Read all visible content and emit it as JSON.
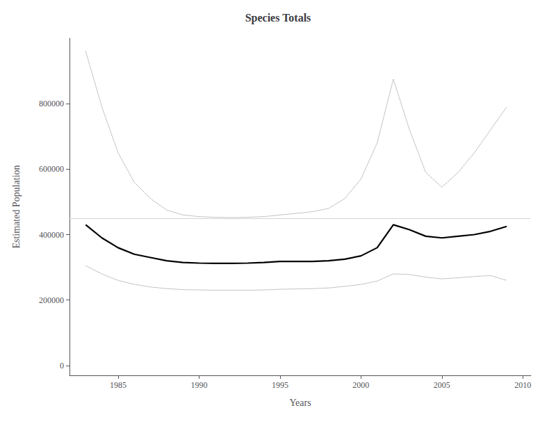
{
  "chart_data": {
    "type": "line",
    "title": "Species Totals",
    "xlabel": "Years",
    "ylabel": "Estimated Population",
    "xlim": [
      1982.0,
      2010.5
    ],
    "ylim": [
      -30000,
      1000000
    ],
    "xticks": [
      1985,
      1990,
      1995,
      2000,
      2005,
      2010
    ],
    "yticks": [
      0,
      200000,
      400000,
      600000,
      800000
    ],
    "grid": false,
    "x": [
      1983,
      1984,
      1985,
      1986,
      1987,
      1988,
      1989,
      1990,
      1991,
      1992,
      1993,
      1994,
      1995,
      1996,
      1997,
      1998,
      1999,
      2000,
      2001,
      2002,
      2003,
      2004,
      2005,
      2006,
      2007,
      2008,
      2009
    ],
    "series": [
      {
        "color": "#888888",
        "line_style": "dotted",
        "values": [
          960000,
          790000,
          650000,
          560000,
          510000,
          475000,
          460000,
          455000,
          453000,
          452000,
          453000,
          455000,
          460000,
          465000,
          470000,
          480000,
          510000,
          570000,
          680000,
          875000,
          720000,
          590000,
          545000,
          590000,
          650000,
          720000,
          790000
        ]
      },
      {
        "color": "#888888",
        "line_style": "dotted",
        "values": [
          305000,
          280000,
          260000,
          248000,
          240000,
          235000,
          232000,
          231000,
          230000,
          230000,
          230000,
          231000,
          233000,
          234000,
          235000,
          237000,
          242000,
          248000,
          258000,
          280000,
          278000,
          270000,
          265000,
          268000,
          272000,
          275000,
          260000
        ]
      },
      {
        "color": "#000000",
        "line_style": "solid",
        "values": [
          430000,
          390000,
          360000,
          340000,
          330000,
          320000,
          315000,
          313000,
          312000,
          312000,
          313000,
          315000,
          318000,
          318000,
          318000,
          320000,
          325000,
          335000,
          360000,
          430000,
          415000,
          395000,
          390000,
          395000,
          400000,
          410000,
          425000
        ]
      }
    ],
    "reference_line": {
      "value": 450000,
      "color": "#aaaaaa",
      "line_style": "dotted"
    }
  }
}
